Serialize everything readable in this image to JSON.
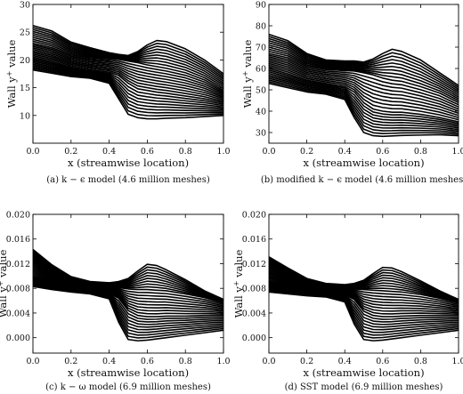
{
  "figure": {
    "panels": [
      {
        "id": "a",
        "caption": "(a) k − ϵ model (4.6 million meshes)",
        "xlabel": "x (streamwise location)",
        "ylabel": "Wall y+ value",
        "xticks": [
          "0.0",
          "0.2",
          "0.4",
          "0.6",
          "0.8",
          "1.0"
        ],
        "yticks": [
          "10",
          "15",
          "20",
          "25",
          "30"
        ]
      },
      {
        "id": "b",
        "caption": "(b) modified k − ϵ model (4.6 million meshes)",
        "xlabel": "x (streamwise location)",
        "ylabel": "Wall y+ value",
        "xticks": [
          "0.0",
          "0.2",
          "0.4",
          "0.6",
          "0.8",
          "1.0"
        ],
        "yticks": [
          "30",
          "40",
          "50",
          "60",
          "70",
          "80",
          "90"
        ]
      },
      {
        "id": "c",
        "caption": "(c) k − ω model (6.9 million meshes)",
        "xlabel": "x (streamwise location)",
        "ylabel": "Wall y+ value",
        "xticks": [
          "0.0",
          "0.2",
          "0.4",
          "0.6",
          "0.8",
          "1.0"
        ],
        "yticks": [
          "0.000",
          "0.004",
          "0.008",
          "0.012",
          "0.016",
          "0.020"
        ]
      },
      {
        "id": "d",
        "caption": "(d) SST model (6.9 million meshes)",
        "xlabel": "x (streamwise location)",
        "ylabel": "Wall y+ value",
        "xticks": [
          "0.0",
          "0.2",
          "0.4",
          "0.6",
          "0.8",
          "1.0"
        ],
        "yticks": [
          "0.000",
          "0.004",
          "0.008",
          "0.012",
          "0.016",
          "0.020"
        ]
      }
    ]
  },
  "chart_data": [
    {
      "panel": "a",
      "type": "line",
      "title": "",
      "xlabel": "x (streamwise location)",
      "ylabel": "Wall y+ value",
      "xlim": [
        0.0,
        1.0
      ],
      "ylim": [
        5,
        30
      ],
      "grid": false,
      "legend": "none",
      "line_color": "#000000",
      "x": [
        0.0,
        0.1,
        0.2,
        0.3,
        0.4,
        0.45,
        0.5,
        0.55,
        0.6,
        0.65,
        0.7,
        0.8,
        0.9,
        1.0
      ],
      "series": [
        {
          "values": [
            26.2,
            25.2,
            23.2,
            22.2,
            21.3,
            21.0,
            20.8,
            21.5,
            22.7,
            23.5,
            23.3,
            22.0,
            20.0,
            17.5
          ]
        },
        {
          "values": [
            23.0,
            22.2,
            20.9,
            20.4,
            20.2,
            20.1,
            19.8,
            19.5,
            19.1,
            18.8,
            18.5,
            17.7,
            16.4,
            14.5
          ]
        },
        {
          "values": [
            20.5,
            19.7,
            18.7,
            18.2,
            17.8,
            17.2,
            15.8,
            14.8,
            14.5,
            14.2,
            14.0,
            13.5,
            13.0,
            12.3
          ]
        },
        {
          "values": [
            18.2,
            17.6,
            17.0,
            16.7,
            15.8,
            13.0,
            10.2,
            9.6,
            9.4,
            9.4,
            9.5,
            9.6,
            9.8,
            10.0
          ]
        }
      ]
    },
    {
      "panel": "b",
      "type": "line",
      "title": "",
      "xlabel": "x (streamwise location)",
      "ylabel": "Wall y+ value",
      "xlim": [
        0.0,
        1.0
      ],
      "ylim": [
        25,
        90
      ],
      "grid": false,
      "legend": "none",
      "line_color": "#000000",
      "x": [
        0.0,
        0.1,
        0.2,
        0.3,
        0.4,
        0.45,
        0.5,
        0.55,
        0.6,
        0.65,
        0.7,
        0.8,
        0.9,
        1.0
      ],
      "series": [
        {
          "values": [
            76.0,
            73.0,
            67.0,
            64.0,
            63.5,
            63.5,
            63.0,
            64.5,
            67.0,
            69.0,
            68.0,
            64.0,
            58.0,
            52.0
          ]
        },
        {
          "values": [
            67.0,
            65.0,
            61.0,
            59.5,
            59.0,
            58.8,
            58.0,
            57.0,
            55.5,
            54.5,
            54.0,
            51.5,
            48.5,
            44.0
          ]
        },
        {
          "values": [
            60.0,
            57.5,
            54.5,
            53.0,
            51.5,
            49.0,
            44.0,
            41.0,
            40.0,
            39.5,
            39.5,
            38.5,
            37.0,
            35.0
          ]
        },
        {
          "values": [
            53.0,
            51.0,
            49.0,
            48.0,
            45.5,
            37.0,
            30.0,
            28.5,
            28.2,
            28.4,
            28.6,
            28.8,
            29.0,
            28.5
          ]
        }
      ]
    },
    {
      "panel": "c",
      "type": "line",
      "title": "",
      "xlabel": "x (streamwise location)",
      "ylabel": "Wall y+ value",
      "xlim": [
        0.0,
        1.0
      ],
      "ylim": [
        -0.0025,
        0.02
      ],
      "grid": false,
      "legend": "none",
      "line_color": "#000000",
      "x": [
        0.0,
        0.1,
        0.2,
        0.3,
        0.4,
        0.45,
        0.5,
        0.55,
        0.6,
        0.65,
        0.7,
        0.8,
        0.9,
        1.0
      ],
      "series": [
        {
          "values": [
            0.0143,
            0.0118,
            0.0099,
            0.0091,
            0.0089,
            0.0091,
            0.0096,
            0.0108,
            0.0119,
            0.0117,
            0.011,
            0.0094,
            0.0076,
            0.0062
          ]
        },
        {
          "values": [
            0.0122,
            0.0104,
            0.0089,
            0.0084,
            0.0082,
            0.0081,
            0.0079,
            0.0078,
            0.0078,
            0.0077,
            0.0076,
            0.0071,
            0.0065,
            0.0056
          ]
        },
        {
          "values": [
            0.01,
            0.009,
            0.0081,
            0.0077,
            0.0072,
            0.0064,
            0.0044,
            0.0036,
            0.0034,
            0.0034,
            0.0035,
            0.0035,
            0.0036,
            0.0036
          ]
        },
        {
          "values": [
            0.0083,
            0.0078,
            0.0074,
            0.0071,
            0.0063,
            0.0025,
            -0.0003,
            -0.0005,
            -0.0004,
            -0.0002,
            0.0,
            0.0004,
            0.0008,
            0.0012
          ]
        }
      ]
    },
    {
      "panel": "d",
      "type": "line",
      "title": "",
      "xlabel": "x (streamwise location)",
      "ylabel": "Wall y+ value",
      "xlim": [
        0.0,
        1.0
      ],
      "ylim": [
        -0.0025,
        0.02
      ],
      "grid": false,
      "legend": "none",
      "line_color": "#000000",
      "x": [
        0.0,
        0.1,
        0.2,
        0.3,
        0.4,
        0.45,
        0.5,
        0.55,
        0.6,
        0.65,
        0.7,
        0.8,
        0.9,
        1.0
      ],
      "series": [
        {
          "values": [
            0.0131,
            0.0113,
            0.0096,
            0.0088,
            0.0086,
            0.0088,
            0.0093,
            0.0104,
            0.0114,
            0.0113,
            0.0107,
            0.0092,
            0.0076,
            0.0062
          ]
        },
        {
          "values": [
            0.0112,
            0.0098,
            0.0086,
            0.0081,
            0.0079,
            0.0079,
            0.0078,
            0.0077,
            0.0076,
            0.0075,
            0.0074,
            0.007,
            0.0064,
            0.0056
          ]
        },
        {
          "values": [
            0.0092,
            0.0084,
            0.0077,
            0.0074,
            0.007,
            0.0062,
            0.0043,
            0.0036,
            0.0034,
            0.0034,
            0.0035,
            0.0036,
            0.0036,
            0.0036
          ]
        },
        {
          "values": [
            0.0074,
            0.0071,
            0.0068,
            0.0066,
            0.0058,
            0.0022,
            -0.0003,
            -0.0005,
            -0.0004,
            -0.0002,
            0.0,
            0.0004,
            0.0008,
            0.0012
          ]
        }
      ]
    }
  ]
}
